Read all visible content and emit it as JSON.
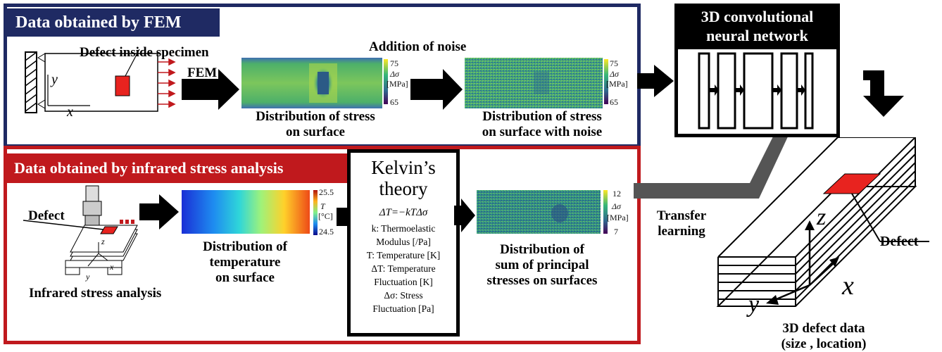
{
  "fem": {
    "banner": "Data obtained by FEM",
    "defect_label": "Defect inside specimen",
    "axis_y": "y",
    "axis_x": "x",
    "fem_label": "FEM",
    "noise_label": "Addition of  noise",
    "stress_caption_1": "Distribution of stress",
    "stress_caption_2": "on surface",
    "noise_caption_1": "Distribution of stress",
    "noise_caption_2": "on surface with noise",
    "colorbar": {
      "max": "75",
      "sym": "Δσ",
      "unit": "[MPa]",
      "min": "65"
    },
    "colorbar_noise": {
      "max": "75",
      "sym": "Δσ",
      "unit": "[MPa]",
      "min": "65"
    }
  },
  "ir": {
    "banner": "Data obtained by infrared stress analysis",
    "defect_label": "Defect",
    "axis_z": "z",
    "axis_x": "x",
    "axis_y": "y",
    "setup_caption": "Infrared stress analysis",
    "temp_caption_1": "Distribution of",
    "temp_caption_2": "temperature",
    "temp_caption_3": "on surface",
    "temp_colorbar": {
      "max": "25.5",
      "sym": "T",
      "unit": "[°C]",
      "min": "24.5"
    },
    "sum_caption_1": "Distribution of",
    "sum_caption_2": "sum of principal",
    "sum_caption_3": "stresses on surfaces",
    "sum_colorbar": {
      "max": "12",
      "sym": "Δσ",
      "unit": "[MPa]",
      "min": "7"
    }
  },
  "kelvin": {
    "title_1": "Kelvin’s",
    "title_2": "theory",
    "equation": "ΔT=−kTΔσ",
    "k_def_1": "k: Thermoelastic",
    "k_def_2": "Modulus [/Pa]",
    "t_def": "T: Temperature [K]",
    "dt_def_1": "ΔT: Temperature",
    "dt_def_2": "Fluctuation [K]",
    "ds_def_1": "Δσ: Stress",
    "ds_def_2": "Fluctuation [Pa]"
  },
  "cnn": {
    "title_1": "3D convolutional",
    "title_2": "neural network"
  },
  "transfer": {
    "line1": "Transfer",
    "line2": "learning"
  },
  "output": {
    "defect_label": "Defect",
    "axis_z": "z",
    "axis_x": "x",
    "axis_y": "y",
    "caption_1": "3D defect data",
    "caption_2": "(size , location)"
  },
  "colors": {
    "fem_blue": "#1f2a63",
    "ir_red": "#c0191d",
    "defect_red": "#e8231f",
    "transfer_gray": "#555555"
  }
}
